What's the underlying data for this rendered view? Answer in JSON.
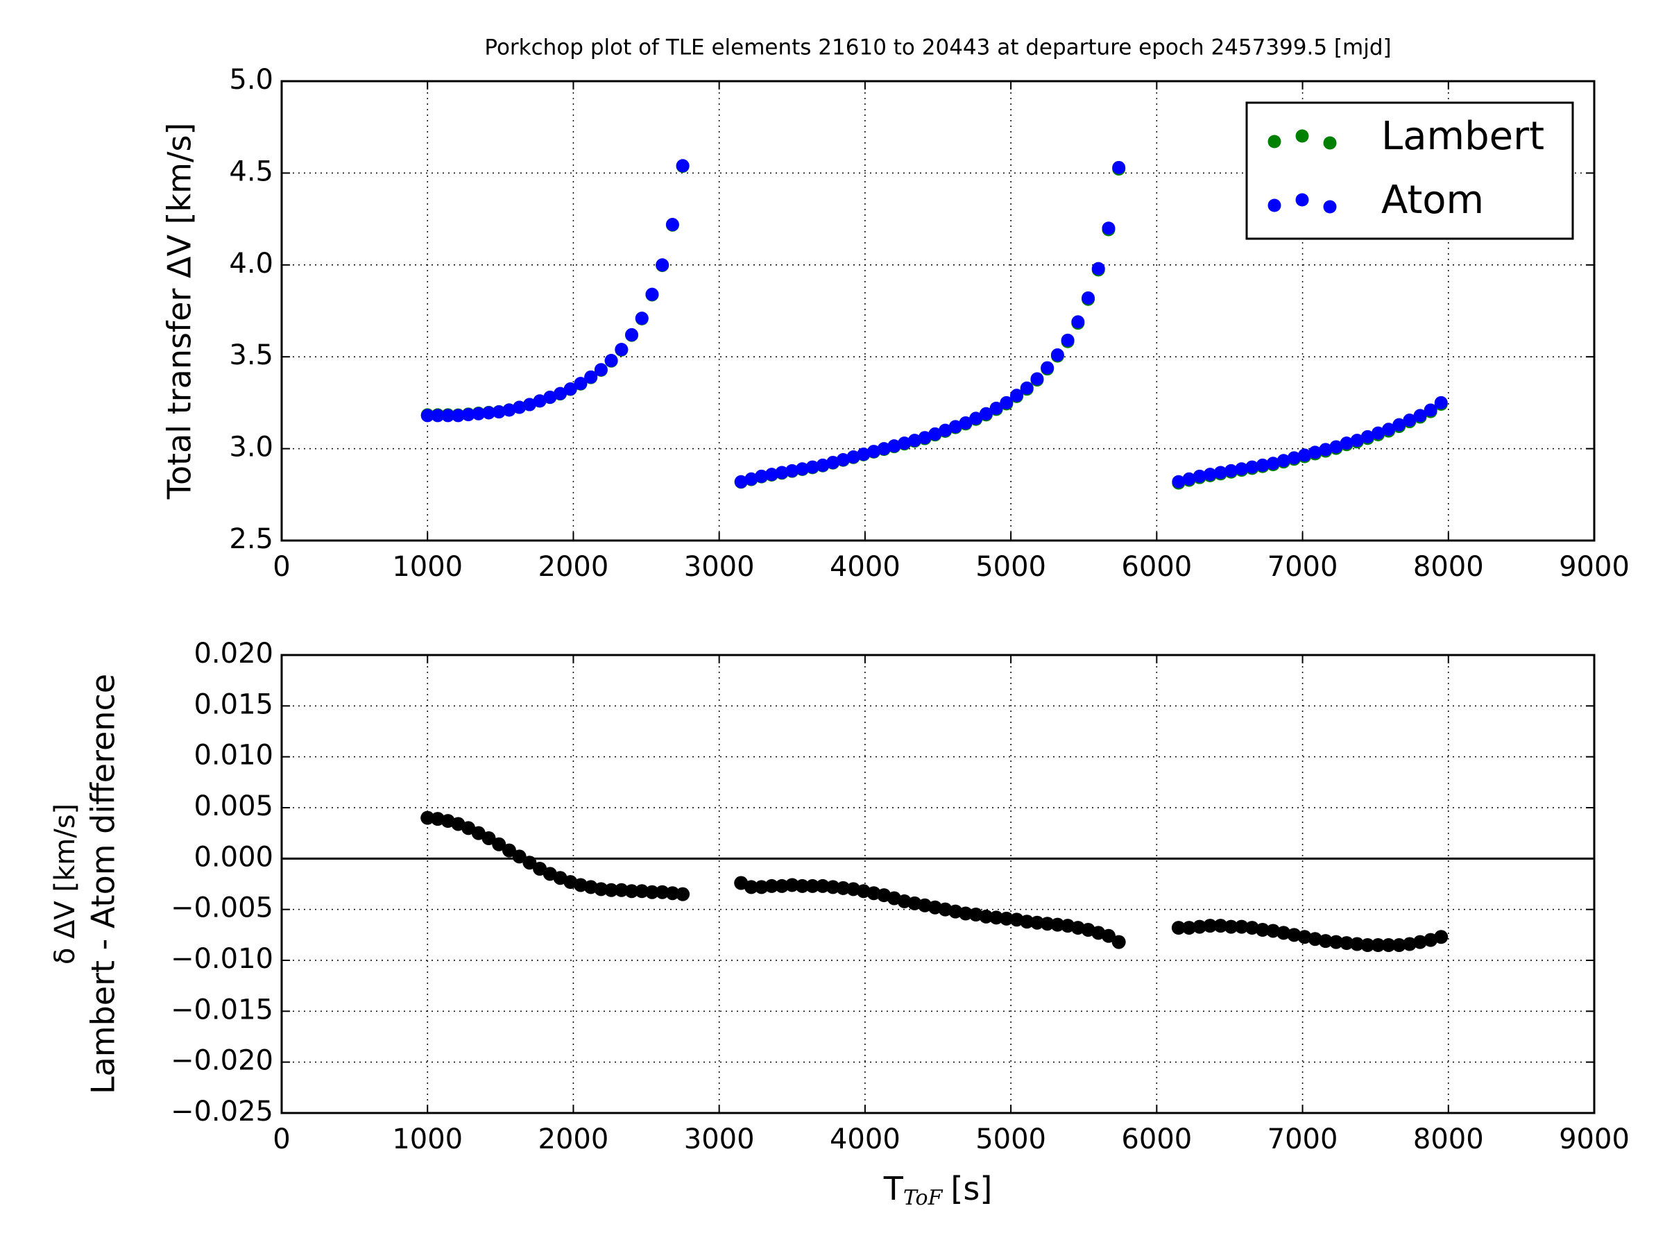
{
  "chart_data": [
    {
      "type": "scatter",
      "title": "Porkchop plot of TLE elements 21610 to 20443 at departure epoch 2457399.5 [mjd]",
      "y_label": "Total transfer ΔV [km/s]",
      "x": [
        1000,
        1070,
        1140,
        1210,
        1280,
        1350,
        1420,
        1490,
        1560,
        1630,
        1700,
        1770,
        1840,
        1910,
        1980,
        2050,
        2120,
        2190,
        2260,
        2330,
        2400,
        2470,
        2540,
        2610,
        2680,
        2750,
        3150,
        3220,
        3290,
        3360,
        3430,
        3500,
        3570,
        3640,
        3710,
        3780,
        3850,
        3920,
        3990,
        4060,
        4130,
        4200,
        4270,
        4340,
        4410,
        4480,
        4550,
        4620,
        4690,
        4760,
        4830,
        4900,
        4970,
        5040,
        5110,
        5180,
        5250,
        5320,
        5390,
        5460,
        5530,
        5600,
        5670,
        5740,
        6150,
        6222,
        6294,
        6366,
        6438,
        6510,
        6582,
        6654,
        6726,
        6798,
        6870,
        6942,
        7014,
        7086,
        7158,
        7230,
        7302,
        7374,
        7446,
        7518,
        7590,
        7662,
        7734,
        7806,
        7878,
        7950
      ],
      "series": [
        {
          "name": "Lambert",
          "color": "#008000",
          "values": [
            3.184,
            3.184,
            3.184,
            3.183,
            3.188,
            3.193,
            3.197,
            3.201,
            3.211,
            3.225,
            3.24,
            3.259,
            3.279,
            3.298,
            3.323,
            3.352,
            3.387,
            3.427,
            3.477,
            3.537,
            3.617,
            3.707,
            3.837,
            3.997,
            4.217,
            4.537,
            2.818,
            2.832,
            2.847,
            2.857,
            2.867,
            2.877,
            2.887,
            2.897,
            2.907,
            2.922,
            2.937,
            2.952,
            2.967,
            2.982,
            2.996,
            3.011,
            3.026,
            3.041,
            3.055,
            3.075,
            3.095,
            3.115,
            3.135,
            3.16,
            3.184,
            3.214,
            3.244,
            3.284,
            3.324,
            3.374,
            3.434,
            3.504,
            3.583,
            3.683,
            3.813,
            3.973,
            4.192,
            4.522,
            2.813,
            2.828,
            2.843,
            2.853,
            2.863,
            2.873,
            2.883,
            2.893,
            2.903,
            2.913,
            2.928,
            2.943,
            2.957,
            2.972,
            2.987,
            3.002,
            3.022,
            3.037,
            3.056,
            3.076,
            3.096,
            3.121,
            3.147,
            3.172,
            3.202,
            3.242
          ]
        },
        {
          "name": "Atom",
          "color": "#0000ff",
          "values": [
            3.18,
            3.18,
            3.18,
            3.18,
            3.185,
            3.19,
            3.195,
            3.2,
            3.21,
            3.225,
            3.24,
            3.26,
            3.28,
            3.3,
            3.325,
            3.355,
            3.39,
            3.43,
            3.48,
            3.54,
            3.62,
            3.71,
            3.84,
            4.0,
            4.22,
            4.54,
            2.82,
            2.835,
            2.85,
            2.86,
            2.87,
            2.88,
            2.89,
            2.9,
            2.91,
            2.925,
            2.94,
            2.955,
            2.97,
            2.985,
            3.0,
            3.015,
            3.03,
            3.045,
            3.06,
            3.08,
            3.1,
            3.12,
            3.14,
            3.165,
            3.19,
            3.22,
            3.25,
            3.29,
            3.33,
            3.38,
            3.44,
            3.51,
            3.59,
            3.69,
            3.82,
            3.98,
            4.2,
            4.53,
            2.82,
            2.835,
            2.85,
            2.86,
            2.87,
            2.88,
            2.89,
            2.9,
            2.91,
            2.92,
            2.935,
            2.95,
            2.965,
            2.98,
            2.995,
            3.01,
            3.03,
            3.045,
            3.065,
            3.085,
            3.105,
            3.13,
            3.155,
            3.18,
            3.21,
            3.25
          ]
        }
      ],
      "xlim": [
        0,
        9000
      ],
      "xticks": [
        0,
        1000,
        2000,
        3000,
        4000,
        5000,
        6000,
        7000,
        8000,
        9000
      ],
      "ylim": [
        2.5,
        5.0
      ],
      "yticks": [
        2.5,
        {
          "value": 3,
          "label": "3.0"
        },
        3.5,
        {
          "value": 4,
          "label": "4.0"
        },
        4.5,
        {
          "value": 5,
          "label": "5.0"
        }
      ],
      "grid": true,
      "legend": "upper right"
    },
    {
      "type": "scatter",
      "y_label": [
        "δ ΔV [km/s]",
        "Lambert - Atom difference"
      ],
      "x_label": {
        "main": "T",
        "subscript": "ToF",
        "unit": "[s]"
      },
      "x": [
        1000,
        1070,
        1140,
        1210,
        1280,
        1350,
        1420,
        1490,
        1560,
        1630,
        1700,
        1770,
        1840,
        1910,
        1980,
        2050,
        2120,
        2190,
        2260,
        2330,
        2400,
        2470,
        2540,
        2610,
        2680,
        2750,
        3150,
        3220,
        3290,
        3360,
        3430,
        3500,
        3570,
        3640,
        3710,
        3780,
        3850,
        3920,
        3990,
        4060,
        4130,
        4200,
        4270,
        4340,
        4410,
        4480,
        4550,
        4620,
        4690,
        4760,
        4830,
        4900,
        4970,
        5040,
        5110,
        5180,
        5250,
        5320,
        5390,
        5460,
        5530,
        5600,
        5670,
        5740,
        6150,
        6222,
        6294,
        6366,
        6438,
        6510,
        6582,
        6654,
        6726,
        6798,
        6870,
        6942,
        7014,
        7086,
        7158,
        7230,
        7302,
        7374,
        7446,
        7518,
        7590,
        7662,
        7734,
        7806,
        7878,
        7950
      ],
      "values": [
        0.004,
        0.0039,
        0.0037,
        0.0034,
        0.003,
        0.0025,
        0.002,
        0.0014,
        0.0008,
        0.0002,
        -0.0004,
        -0.001,
        -0.0015,
        -0.0019,
        -0.0023,
        -0.0026,
        -0.0028,
        -0.003,
        -0.0031,
        -0.0031,
        -0.0032,
        -0.0032,
        -0.0033,
        -0.0033,
        -0.0034,
        -0.0035,
        -0.0024,
        -0.0028,
        -0.0028,
        -0.0027,
        -0.0027,
        -0.0026,
        -0.0027,
        -0.0027,
        -0.0027,
        -0.0028,
        -0.0029,
        -0.003,
        -0.0032,
        -0.0034,
        -0.0036,
        -0.0039,
        -0.0042,
        -0.0044,
        -0.0046,
        -0.0048,
        -0.005,
        -0.0052,
        -0.0054,
        -0.0055,
        -0.0057,
        -0.0058,
        -0.0059,
        -0.006,
        -0.0062,
        -0.0063,
        -0.0064,
        -0.0065,
        -0.0066,
        -0.0068,
        -0.007,
        -0.0073,
        -0.0076,
        -0.0082,
        -0.0068,
        -0.0068,
        -0.0067,
        -0.0066,
        -0.0066,
        -0.0067,
        -0.0067,
        -0.0068,
        -0.007,
        -0.0071,
        -0.0073,
        -0.0075,
        -0.0077,
        -0.0079,
        -0.0081,
        -0.0082,
        -0.0083,
        -0.0084,
        -0.0085,
        -0.0085,
        -0.0085,
        -0.0085,
        -0.0084,
        -0.0082,
        -0.008,
        -0.0077
      ],
      "color": "#000000",
      "xlim": [
        0,
        9000
      ],
      "xticks": [
        0,
        1000,
        2000,
        3000,
        4000,
        5000,
        6000,
        7000,
        8000,
        9000
      ],
      "ylim": [
        -0.025,
        0.02
      ],
      "yticks": [
        {
          "value": -0.025,
          "label": "−0.025"
        },
        {
          "value": -0.02,
          "label": "−0.020"
        },
        {
          "value": -0.015,
          "label": "−0.015"
        },
        {
          "value": -0.01,
          "label": "−0.010"
        },
        {
          "value": -0.005,
          "label": "−0.005"
        },
        {
          "value": 0,
          "label": "0.000"
        },
        {
          "value": 0.005,
          "label": "0.005"
        },
        {
          "value": 0.01,
          "label": "0.010"
        },
        {
          "value": 0.015,
          "label": "0.015"
        },
        {
          "value": 0.02,
          "label": "0.020"
        }
      ],
      "grid": true,
      "hline": 0
    }
  ]
}
